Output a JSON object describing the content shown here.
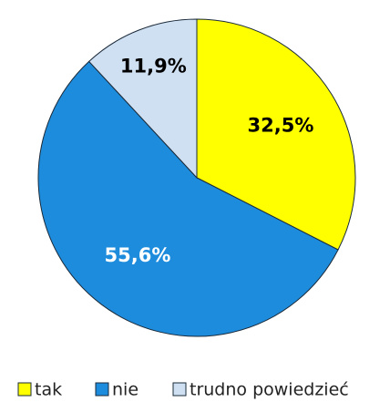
{
  "chart_data": {
    "type": "pie",
    "categories": [
      "tak",
      "nie",
      "trudno powiedzieć"
    ],
    "values": [
      32.5,
      55.6,
      11.9
    ],
    "value_labels": [
      "32,5%",
      "55,6%",
      "11,9%"
    ],
    "colors": [
      "#ffff00",
      "#1e8cdc",
      "#cfe0f2"
    ]
  }
}
